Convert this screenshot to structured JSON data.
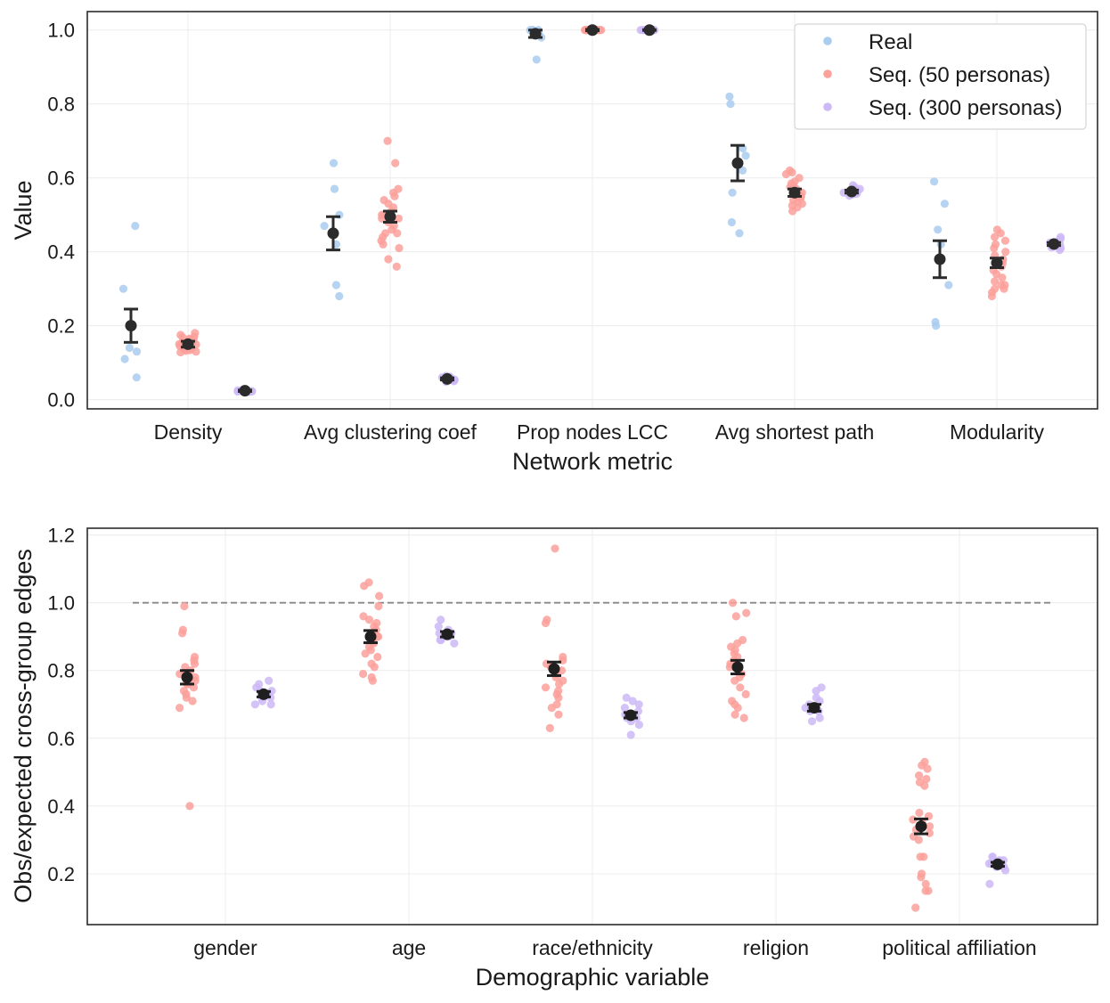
{
  "colors": {
    "real": "#a9cdef",
    "seq50": "#fba09b",
    "seq300": "#cdb9f6",
    "mean_top": "#2b2b2b",
    "mean_bottom": "#1f1f1f",
    "grid": "#ececec",
    "axis": "#2b2b2b",
    "ref_line": "#888888"
  },
  "chart_data": [
    {
      "type": "scatter",
      "subtype": "strip-with-mean-and-error-bars",
      "title": "",
      "xlabel": "Network metric",
      "ylabel": "Value",
      "ylim": [
        -0.025,
        1.05
      ],
      "yticks": [
        0.0,
        0.2,
        0.4,
        0.6,
        0.8,
        1.0
      ],
      "ytick_labels": [
        "0.0",
        "0.2",
        "0.4",
        "0.6",
        "0.8",
        "1.0"
      ],
      "grid": true,
      "legend_position": "top-right",
      "categories": [
        "Density",
        "Avg clustering coef",
        "Prop nodes LCC",
        "Avg shortest path",
        "Modularity"
      ],
      "series": [
        {
          "name": "Real",
          "color_key": "real",
          "points": [
            [
              0.47,
              0.3,
              0.14,
              0.13,
              0.11,
              0.06
            ],
            [
              0.64,
              0.57,
              0.5,
              0.47,
              0.42,
              0.31,
              0.28
            ],
            [
              1.0,
              1.0,
              1.0,
              1.0,
              0.99,
              0.98,
              0.92
            ],
            [
              0.82,
              0.8,
              0.68,
              0.66,
              0.62,
              0.56,
              0.48,
              0.45
            ],
            [
              0.59,
              0.53,
              0.46,
              0.42,
              0.31,
              0.21,
              0.2
            ]
          ],
          "mean": [
            0.2,
            0.45,
            0.99,
            0.64,
            0.38
          ],
          "err": [
            0.045,
            0.045,
            0.01,
            0.048,
            0.05
          ]
        },
        {
          "name": "Seq. (50 personas)",
          "color_key": "seq50",
          "points": [
            [
              0.18,
              0.175,
              0.17,
              0.168,
              0.165,
              0.163,
              0.16,
              0.158,
              0.155,
              0.153,
              0.151,
              0.15,
              0.149,
              0.147,
              0.145,
              0.143,
              0.141,
              0.14,
              0.138,
              0.136,
              0.134,
              0.132,
              0.13,
              0.128
            ],
            [
              0.7,
              0.64,
              0.57,
              0.56,
              0.55,
              0.54,
              0.53,
              0.52,
              0.51,
              0.5,
              0.5,
              0.49,
              0.49,
              0.48,
              0.47,
              0.46,
              0.45,
              0.45,
              0.44,
              0.43,
              0.42,
              0.41,
              0.38,
              0.36
            ],
            [
              1.0,
              1.0,
              1.0,
              1.0,
              1.0,
              1.0,
              1.0,
              1.0,
              1.0,
              1.0,
              1.0,
              1.0,
              1.0,
              1.0,
              1.0,
              1.0,
              1.0,
              1.0,
              1.0,
              1.0
            ],
            [
              0.62,
              0.615,
              0.61,
              0.6,
              0.59,
              0.585,
              0.58,
              0.575,
              0.57,
              0.565,
              0.56,
              0.555,
              0.55,
              0.545,
              0.54,
              0.535,
              0.53,
              0.525,
              0.52,
              0.51
            ],
            [
              0.46,
              0.45,
              0.44,
              0.43,
              0.42,
              0.41,
              0.4,
              0.39,
              0.38,
              0.37,
              0.36,
              0.35,
              0.34,
              0.33,
              0.32,
              0.31,
              0.31,
              0.3,
              0.3,
              0.29,
              0.28
            ]
          ],
          "mean": [
            0.15,
            0.495,
            1.0,
            0.56,
            0.37
          ],
          "err": [
            0.008,
            0.015,
            0.002,
            0.01,
            0.013
          ]
        },
        {
          "name": "Seq. (300 personas)",
          "color_key": "seq300",
          "points": [
            [
              0.028,
              0.026,
              0.025,
              0.024,
              0.024,
              0.023,
              0.023,
              0.022,
              0.022,
              0.021
            ],
            [
              0.064,
              0.062,
              0.06,
              0.058,
              0.056,
              0.055,
              0.054,
              0.052,
              0.05,
              0.048
            ],
            [
              1.0,
              1.0,
              1.0,
              1.0,
              1.0,
              1.0,
              1.0,
              1.0,
              1.0,
              1.0
            ],
            [
              0.58,
              0.575,
              0.57,
              0.567,
              0.565,
              0.562,
              0.56,
              0.557,
              0.555,
              0.552
            ],
            [
              0.44,
              0.435,
              0.43,
              0.425,
              0.42,
              0.418,
              0.415,
              0.412,
              0.41,
              0.405
            ]
          ],
          "mean": [
            0.024,
            0.056,
            1.0,
            0.563,
            0.421
          ],
          "err": [
            0.002,
            0.003,
            0.001,
            0.004,
            0.004
          ]
        }
      ]
    },
    {
      "type": "scatter",
      "subtype": "strip-with-mean-and-error-bars",
      "title": "",
      "xlabel": "Demographic variable",
      "ylabel": "Obs/expected cross-group edges",
      "ylim": [
        0.05,
        1.22
      ],
      "yticks": [
        0.2,
        0.4,
        0.6,
        0.8,
        1.0,
        1.2
      ],
      "ytick_labels": [
        "0.2",
        "0.4",
        "0.6",
        "0.8",
        "1.0",
        "1.2"
      ],
      "grid": true,
      "reference_line": 1.0,
      "categories": [
        "gender",
        "age",
        "race/ethnicity",
        "religion",
        "political affiliation"
      ],
      "series": [
        {
          "name": "Seq. (50 personas)",
          "color_key": "seq50",
          "points": [
            [
              0.99,
              0.92,
              0.91,
              0.84,
              0.83,
              0.82,
              0.81,
              0.8,
              0.79,
              0.79,
              0.78,
              0.78,
              0.77,
              0.77,
              0.76,
              0.76,
              0.75,
              0.74,
              0.73,
              0.72,
              0.71,
              0.69,
              0.4
            ],
            [
              1.06,
              1.05,
              1.02,
              0.99,
              0.96,
              0.95,
              0.94,
              0.93,
              0.92,
              0.91,
              0.9,
              0.9,
              0.89,
              0.88,
              0.87,
              0.86,
              0.85,
              0.84,
              0.82,
              0.81,
              0.79,
              0.78,
              0.77
            ],
            [
              1.16,
              0.95,
              0.94,
              0.84,
              0.83,
              0.82,
              0.81,
              0.8,
              0.8,
              0.79,
              0.78,
              0.77,
              0.76,
              0.75,
              0.74,
              0.73,
              0.72,
              0.7,
              0.69,
              0.67,
              0.63
            ],
            [
              1.0,
              0.97,
              0.96,
              0.89,
              0.88,
              0.87,
              0.86,
              0.85,
              0.84,
              0.83,
              0.82,
              0.81,
              0.8,
              0.79,
              0.78,
              0.77,
              0.75,
              0.73,
              0.71,
              0.7,
              0.69,
              0.67,
              0.66
            ],
            [
              0.53,
              0.52,
              0.51,
              0.49,
              0.48,
              0.47,
              0.46,
              0.38,
              0.37,
              0.36,
              0.35,
              0.34,
              0.33,
              0.32,
              0.31,
              0.3,
              0.25,
              0.25,
              0.2,
              0.19,
              0.17,
              0.15,
              0.15,
              0.1
            ]
          ],
          "mean": [
            0.78,
            0.9,
            0.805,
            0.81,
            0.34
          ],
          "err": [
            0.02,
            0.018,
            0.02,
            0.02,
            0.022
          ]
        },
        {
          "name": "Seq. (300 personas)",
          "color_key": "seq300",
          "points": [
            [
              0.77,
              0.76,
              0.75,
              0.74,
              0.74,
              0.73,
              0.73,
              0.72,
              0.72,
              0.71,
              0.7,
              0.7
            ],
            [
              0.95,
              0.93,
              0.92,
              0.91,
              0.91,
              0.9,
              0.9,
              0.89,
              0.89,
              0.88
            ],
            [
              0.72,
              0.71,
              0.7,
              0.69,
              0.68,
              0.67,
              0.66,
              0.66,
              0.65,
              0.64,
              0.61
            ],
            [
              0.75,
              0.74,
              0.72,
              0.71,
              0.7,
              0.69,
              0.68,
              0.68,
              0.66,
              0.65
            ],
            [
              0.25,
              0.25,
              0.24,
              0.24,
              0.23,
              0.23,
              0.22,
              0.22,
              0.21,
              0.17
            ]
          ],
          "mean": [
            0.73,
            0.907,
            0.668,
            0.69,
            0.228
          ],
          "err": [
            0.008,
            0.008,
            0.008,
            0.01,
            0.006
          ]
        }
      ]
    }
  ]
}
